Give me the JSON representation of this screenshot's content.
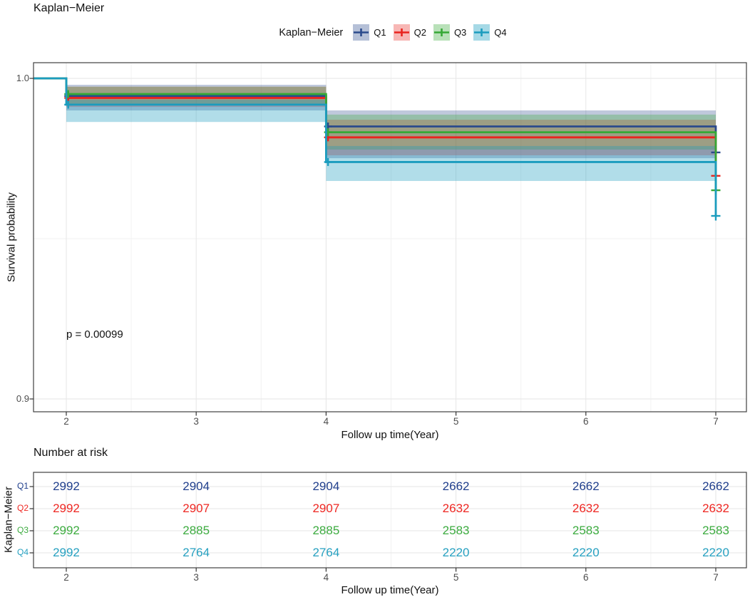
{
  "page": {
    "title": "Kaplan−Meier"
  },
  "legend": {
    "title": "Kaplan−Meier",
    "items": [
      {
        "label": "Q1",
        "color": "#2b4a8c",
        "fill_opacity": 0.3
      },
      {
        "label": "Q2",
        "color": "#e8241e",
        "fill_opacity": 0.28
      },
      {
        "label": "Q3",
        "color": "#36a836",
        "fill_opacity": 0.3
      },
      {
        "label": "Q4",
        "color": "#1b9cbe",
        "fill_opacity": 0.34
      }
    ]
  },
  "chart_data": {
    "type": "line",
    "subtype": "kaplan-meier-step",
    "title": "Kaplan−Meier",
    "xlabel": "Follow up time(Year)",
    "ylabel": "Survival probability",
    "pvalue": "p = 0.00099",
    "xlim": [
      1.7476,
      7.236
    ],
    "ylim": [
      0.896,
      1.00489
    ],
    "x_major": [
      2,
      3,
      4,
      5,
      6,
      7
    ],
    "x_minor": [
      2.5,
      3.5,
      4.5,
      5.5,
      6.5
    ],
    "y_major": [
      0.9,
      1.0
    ],
    "y_minor": [
      0.95
    ],
    "y_tick_labels": [
      {
        "value": 1.0,
        "label": "1.0"
      },
      {
        "value": 0.9,
        "label": "0.9"
      }
    ],
    "x_tick_labels": [
      "2",
      "3",
      "4",
      "5",
      "6",
      "7"
    ],
    "grid": true,
    "legend_position": "top",
    "series": [
      {
        "name": "Q1",
        "color": "#2b4a8c",
        "fill_opacity": 0.3,
        "start": 1.0,
        "steps": {
          "t": [
            2,
            4,
            7
          ],
          "surv": [
            0.9945,
            0.985,
            0.9769
          ]
        },
        "bands": [
          {
            "t0": 2,
            "t1": 4,
            "lo": 0.99,
            "hi": 0.998
          },
          {
            "t0": 4,
            "t1": 7,
            "lo": 0.9751,
            "hi": 0.99
          }
        ],
        "censors": [
          {
            "t": 2.015,
            "p": 0.9945
          },
          {
            "t": 4.015,
            "p": 0.985
          },
          {
            "t": 7,
            "p": 0.9769
          }
        ]
      },
      {
        "name": "Q2",
        "color": "#e8241e",
        "fill_opacity": 0.28,
        "start": 1.0,
        "steps": {
          "t": [
            2,
            4,
            7
          ],
          "surv": [
            0.9939,
            0.9816,
            0.9696
          ]
        },
        "bands": [
          {
            "t0": 2,
            "t1": 4,
            "lo": 0.9911,
            "hi": 0.9974
          },
          {
            "t0": 4,
            "t1": 7,
            "lo": 0.976,
            "hi": 0.9871
          }
        ],
        "censors": [
          {
            "t": 2.015,
            "p": 0.9939
          },
          {
            "t": 4.015,
            "p": 0.9816
          },
          {
            "t": 7,
            "p": 0.9696
          }
        ]
      },
      {
        "name": "Q3",
        "color": "#36a836",
        "fill_opacity": 0.3,
        "start": 1.0,
        "steps": {
          "t": [
            2,
            4,
            7
          ],
          "surv": [
            0.9951,
            0.9832,
            0.9651
          ]
        },
        "bands": [
          {
            "t0": 2,
            "t1": 4,
            "lo": 0.992,
            "hi": 0.9974
          },
          {
            "t0": 4,
            "t1": 7,
            "lo": 0.9778,
            "hi": 0.9887
          }
        ],
        "censors": [
          {
            "t": 2.015,
            "p": 0.9951
          },
          {
            "t": 4.015,
            "p": 0.9832
          },
          {
            "t": 7,
            "p": 0.9651
          }
        ]
      },
      {
        "name": "Q4",
        "color": "#1b9cbe",
        "fill_opacity": 0.34,
        "start": 1.0,
        "steps": {
          "t": [
            2,
            4,
            7
          ],
          "surv": [
            0.9918,
            0.9739,
            0.9571
          ]
        },
        "bands": [
          {
            "t0": 2,
            "t1": 4,
            "lo": 0.9864,
            "hi": 0.9933
          },
          {
            "t0": 4,
            "t1": 7,
            "lo": 0.968,
            "hi": 0.9789
          }
        ],
        "censors": [
          {
            "t": 2.015,
            "p": 0.9918
          },
          {
            "t": 4.015,
            "p": 0.9739
          },
          {
            "t": 7,
            "p": 0.9571
          }
        ]
      }
    ]
  },
  "risk_table": {
    "heading": "Number at risk",
    "axis_label": "Kaplan−Meier",
    "xlabel": "Follow up time(Year)",
    "times": [
      2,
      3,
      4,
      5,
      6,
      7
    ],
    "x_tick_labels": [
      "2",
      "3",
      "4",
      "5",
      "6",
      "7"
    ],
    "rows": [
      {
        "label": "Q1",
        "color": "#1f3e8c",
        "values": [
          "2992",
          "2904",
          "2904",
          "2662",
          "2662",
          "2662"
        ]
      },
      {
        "label": "Q2",
        "color": "#ee2722",
        "values": [
          "2992",
          "2907",
          "2907",
          "2632",
          "2632",
          "2632"
        ]
      },
      {
        "label": "Q3",
        "color": "#3cab3f",
        "values": [
          "2992",
          "2885",
          "2885",
          "2583",
          "2583",
          "2583"
        ]
      },
      {
        "label": "Q4",
        "color": "#26a0c0",
        "values": [
          "2992",
          "2764",
          "2764",
          "2220",
          "2220",
          "2220"
        ]
      }
    ]
  }
}
